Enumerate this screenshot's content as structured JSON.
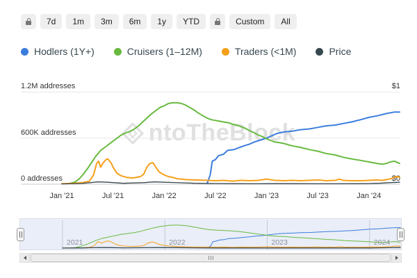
{
  "toolbar": {
    "buttons": [
      "7d",
      "1m",
      "3m",
      "6m",
      "1y",
      "YTD",
      "Custom",
      "All"
    ]
  },
  "watermark": {
    "text": "ntoTheBlock"
  },
  "navigator": {
    "years": [
      "2021",
      "2022",
      "2023",
      "2024"
    ],
    "year_values": [
      2021,
      2022,
      2023,
      2024
    ]
  },
  "chart_data": {
    "type": "line",
    "title": "",
    "xlabel": "",
    "ylabel": "addresses",
    "xlim": [
      2020.6,
      2024.3
    ],
    "ylim": [
      0,
      1.34
    ],
    "grid": "horizontal",
    "legend_position": "top",
    "y_gridlines": [
      {
        "value": 1.2,
        "label": "1.2M addresses"
      },
      {
        "value": 0.6,
        "label": "600K addresses"
      },
      {
        "value": 0.0,
        "label": "0 addresses"
      }
    ],
    "right_axis": {
      "top": "$1",
      "bottom": "$0"
    },
    "x_ticks": [
      {
        "value": 2021.0,
        "label": "Jan '21"
      },
      {
        "value": 2021.5,
        "label": "Jul '21"
      },
      {
        "value": 2022.0,
        "label": "Jan '22"
      },
      {
        "value": 2022.5,
        "label": "Jul '22"
      },
      {
        "value": 2023.0,
        "label": "Jan '23"
      },
      {
        "value": 2023.5,
        "label": "Jul '23"
      },
      {
        "value": 2024.0,
        "label": "Jan '24"
      }
    ],
    "series": [
      {
        "name": "Hodlers (1Y+)",
        "color": "#3b7ddd",
        "unit": "M addresses",
        "points": [
          [
            2022.42,
            0.01
          ],
          [
            2022.45,
            0.12
          ],
          [
            2022.47,
            0.3
          ],
          [
            2022.5,
            0.32
          ],
          [
            2022.53,
            0.37
          ],
          [
            2022.58,
            0.39
          ],
          [
            2022.62,
            0.44
          ],
          [
            2022.68,
            0.45
          ],
          [
            2022.72,
            0.47
          ],
          [
            2022.78,
            0.5
          ],
          [
            2022.83,
            0.52
          ],
          [
            2022.88,
            0.55
          ],
          [
            2022.93,
            0.57
          ],
          [
            2023.0,
            0.6
          ],
          [
            2023.05,
            0.63
          ],
          [
            2023.1,
            0.66
          ],
          [
            2023.17,
            0.68
          ],
          [
            2023.25,
            0.69
          ],
          [
            2023.33,
            0.71
          ],
          [
            2023.42,
            0.72
          ],
          [
            2023.5,
            0.74
          ],
          [
            2023.58,
            0.76
          ],
          [
            2023.67,
            0.77
          ],
          [
            2023.75,
            0.79
          ],
          [
            2023.83,
            0.81
          ],
          [
            2023.92,
            0.84
          ],
          [
            2024.0,
            0.87
          ],
          [
            2024.08,
            0.89
          ],
          [
            2024.17,
            0.92
          ],
          [
            2024.25,
            0.94
          ],
          [
            2024.3,
            0.94
          ]
        ]
      },
      {
        "name": "Cruisers (1–12M)",
        "color": "#68ba3f",
        "unit": "M addresses",
        "points": [
          [
            2021.08,
            0.01
          ],
          [
            2021.13,
            0.03
          ],
          [
            2021.17,
            0.07
          ],
          [
            2021.21,
            0.13
          ],
          [
            2021.25,
            0.2
          ],
          [
            2021.29,
            0.28
          ],
          [
            2021.33,
            0.36
          ],
          [
            2021.38,
            0.44
          ],
          [
            2021.42,
            0.48
          ],
          [
            2021.46,
            0.52
          ],
          [
            2021.5,
            0.56
          ],
          [
            2021.54,
            0.6
          ],
          [
            2021.58,
            0.64
          ],
          [
            2021.63,
            0.67
          ],
          [
            2021.67,
            0.69
          ],
          [
            2021.71,
            0.72
          ],
          [
            2021.75,
            0.76
          ],
          [
            2021.79,
            0.81
          ],
          [
            2021.83,
            0.86
          ],
          [
            2021.88,
            0.92
          ],
          [
            2021.92,
            0.96
          ],
          [
            2021.96,
            1.0
          ],
          [
            2022.0,
            1.02
          ],
          [
            2022.04,
            1.05
          ],
          [
            2022.08,
            1.06
          ],
          [
            2022.13,
            1.06
          ],
          [
            2022.17,
            1.05
          ],
          [
            2022.21,
            1.03
          ],
          [
            2022.25,
            1.0
          ],
          [
            2022.29,
            0.97
          ],
          [
            2022.33,
            0.93
          ],
          [
            2022.38,
            0.89
          ],
          [
            2022.42,
            0.86
          ],
          [
            2022.46,
            0.84
          ],
          [
            2022.5,
            0.83
          ],
          [
            2022.54,
            0.82
          ],
          [
            2022.58,
            0.81
          ],
          [
            2022.63,
            0.8
          ],
          [
            2022.67,
            0.78
          ],
          [
            2022.71,
            0.77
          ],
          [
            2022.75,
            0.75
          ],
          [
            2022.79,
            0.73
          ],
          [
            2022.83,
            0.7
          ],
          [
            2022.88,
            0.67
          ],
          [
            2022.92,
            0.64
          ],
          [
            2022.96,
            0.62
          ],
          [
            2023.0,
            0.59
          ],
          [
            2023.04,
            0.57
          ],
          [
            2023.08,
            0.55
          ],
          [
            2023.13,
            0.54
          ],
          [
            2023.17,
            0.53
          ],
          [
            2023.25,
            0.5
          ],
          [
            2023.33,
            0.48
          ],
          [
            2023.42,
            0.45
          ],
          [
            2023.5,
            0.43
          ],
          [
            2023.58,
            0.4
          ],
          [
            2023.67,
            0.38
          ],
          [
            2023.75,
            0.35
          ],
          [
            2023.83,
            0.33
          ],
          [
            2023.92,
            0.31
          ],
          [
            2024.0,
            0.29
          ],
          [
            2024.04,
            0.28
          ],
          [
            2024.08,
            0.27
          ],
          [
            2024.13,
            0.26
          ],
          [
            2024.17,
            0.27
          ],
          [
            2024.21,
            0.29
          ],
          [
            2024.25,
            0.3
          ],
          [
            2024.3,
            0.27
          ]
        ]
      },
      {
        "name": "Traders (<1M)",
        "color": "#f5a01b",
        "unit": "M addresses",
        "points": [
          [
            2021.0,
            0.005
          ],
          [
            2021.1,
            0.01
          ],
          [
            2021.2,
            0.02
          ],
          [
            2021.27,
            0.04
          ],
          [
            2021.31,
            0.12
          ],
          [
            2021.34,
            0.27
          ],
          [
            2021.36,
            0.3
          ],
          [
            2021.38,
            0.22
          ],
          [
            2021.4,
            0.27
          ],
          [
            2021.43,
            0.32
          ],
          [
            2021.45,
            0.33
          ],
          [
            2021.48,
            0.28
          ],
          [
            2021.51,
            0.2
          ],
          [
            2021.54,
            0.14
          ],
          [
            2021.58,
            0.11
          ],
          [
            2021.63,
            0.09
          ],
          [
            2021.69,
            0.08
          ],
          [
            2021.73,
            0.09
          ],
          [
            2021.77,
            0.1
          ],
          [
            2021.8,
            0.13
          ],
          [
            2021.83,
            0.22
          ],
          [
            2021.86,
            0.27
          ],
          [
            2021.89,
            0.28
          ],
          [
            2021.92,
            0.22
          ],
          [
            2021.95,
            0.16
          ],
          [
            2022.0,
            0.12
          ],
          [
            2022.04,
            0.1
          ],
          [
            2022.08,
            0.09
          ],
          [
            2022.13,
            0.07
          ],
          [
            2022.21,
            0.06
          ],
          [
            2022.29,
            0.055
          ],
          [
            2022.42,
            0.05
          ],
          [
            2022.5,
            0.045
          ],
          [
            2022.58,
            0.05
          ],
          [
            2022.67,
            0.04
          ],
          [
            2022.75,
            0.05
          ],
          [
            2022.83,
            0.045
          ],
          [
            2022.92,
            0.05
          ],
          [
            2023.0,
            0.065
          ],
          [
            2023.08,
            0.05
          ],
          [
            2023.17,
            0.045
          ],
          [
            2023.25,
            0.05
          ],
          [
            2023.33,
            0.045
          ],
          [
            2023.42,
            0.05
          ],
          [
            2023.5,
            0.055
          ],
          [
            2023.58,
            0.045
          ],
          [
            2023.67,
            0.05
          ],
          [
            2023.71,
            0.065
          ],
          [
            2023.75,
            0.05
          ],
          [
            2023.83,
            0.045
          ],
          [
            2023.92,
            0.045
          ],
          [
            2024.0,
            0.05
          ],
          [
            2024.08,
            0.055
          ],
          [
            2024.13,
            0.05
          ],
          [
            2024.21,
            0.07
          ],
          [
            2024.27,
            0.1
          ],
          [
            2024.3,
            0.09
          ]
        ]
      },
      {
        "name": "Price",
        "color": "#37474f",
        "axis": "right",
        "unit": "$",
        "points": [
          [
            2021.0,
            0.004
          ],
          [
            2021.2,
            0.01
          ],
          [
            2021.35,
            0.03
          ],
          [
            2021.45,
            0.025
          ],
          [
            2021.6,
            0.012
          ],
          [
            2021.8,
            0.02
          ],
          [
            2021.9,
            0.03
          ],
          [
            2022.0,
            0.025
          ],
          [
            2022.1,
            0.022
          ],
          [
            2022.3,
            0.012
          ],
          [
            2022.5,
            0.008
          ],
          [
            2022.7,
            0.006
          ],
          [
            2022.9,
            0.005
          ],
          [
            2023.1,
            0.007
          ],
          [
            2023.3,
            0.006
          ],
          [
            2023.5,
            0.005
          ],
          [
            2023.7,
            0.005
          ],
          [
            2023.9,
            0.006
          ],
          [
            2024.0,
            0.008
          ],
          [
            2024.1,
            0.012
          ],
          [
            2024.2,
            0.02
          ],
          [
            2024.3,
            0.025
          ]
        ]
      }
    ]
  }
}
